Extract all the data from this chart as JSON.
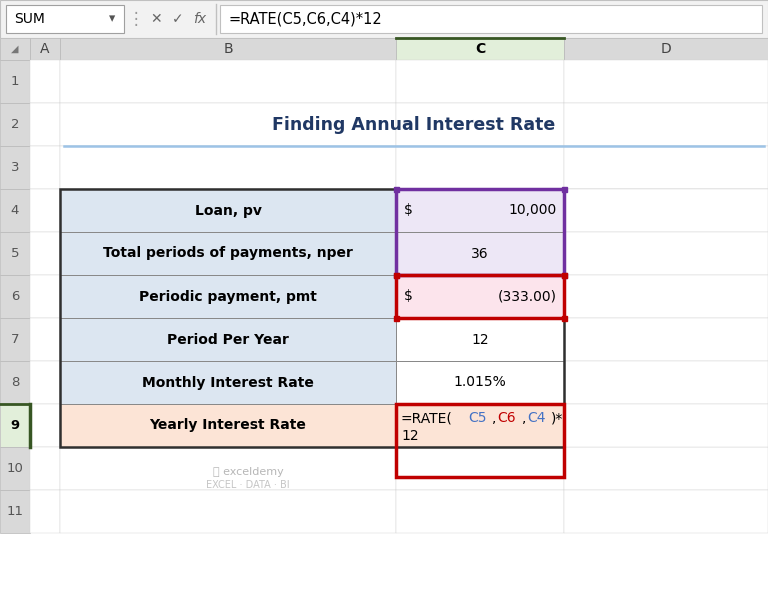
{
  "title": "Finding Annual Interest Rate",
  "formula_bar_name": "SUM",
  "formula_bar_formula": "=RATE(C5,C6,C4)*12",
  "col_headers": [
    "A",
    "B",
    "C",
    "D"
  ],
  "rows": [
    {
      "label": "Loan, pv",
      "value": "$ 10,000",
      "row": 4,
      "label_bg": "#dce6f1",
      "value_bg": "#ede7f6"
    },
    {
      "label": "Total periods of payments, nper",
      "value": "36",
      "row": 5,
      "label_bg": "#dce6f1",
      "value_bg": "#ede7f6"
    },
    {
      "label": "Periodic payment, pmt",
      "value": "$ (333.00)",
      "row": 6,
      "label_bg": "#dce6f1",
      "value_bg": "#fce4ec"
    },
    {
      "label": "Period Per Year",
      "value": "12",
      "row": 7,
      "label_bg": "#dce6f1",
      "value_bg": "#ffffff"
    },
    {
      "label": "Monthly Interest Rate",
      "value": "1.015%",
      "row": 8,
      "label_bg": "#dce6f1",
      "value_bg": "#ffffff"
    },
    {
      "label": "Yearly Interest Rate",
      "value": "",
      "row": 9,
      "label_bg": "#fce4d6",
      "value_bg": "#fce4d6"
    }
  ],
  "purple": "#7030a0",
  "red": "#c00000",
  "blue": "#4472c4",
  "title_color": "#203864",
  "toolbar_bg": "#f2f2f2",
  "header_bg": "#d9d9d9",
  "selected_header_bg": "#e2efda",
  "selected_row_bg": "#e2efda",
  "watermark": "exceldemy\nEXCEL · DATA · BI"
}
